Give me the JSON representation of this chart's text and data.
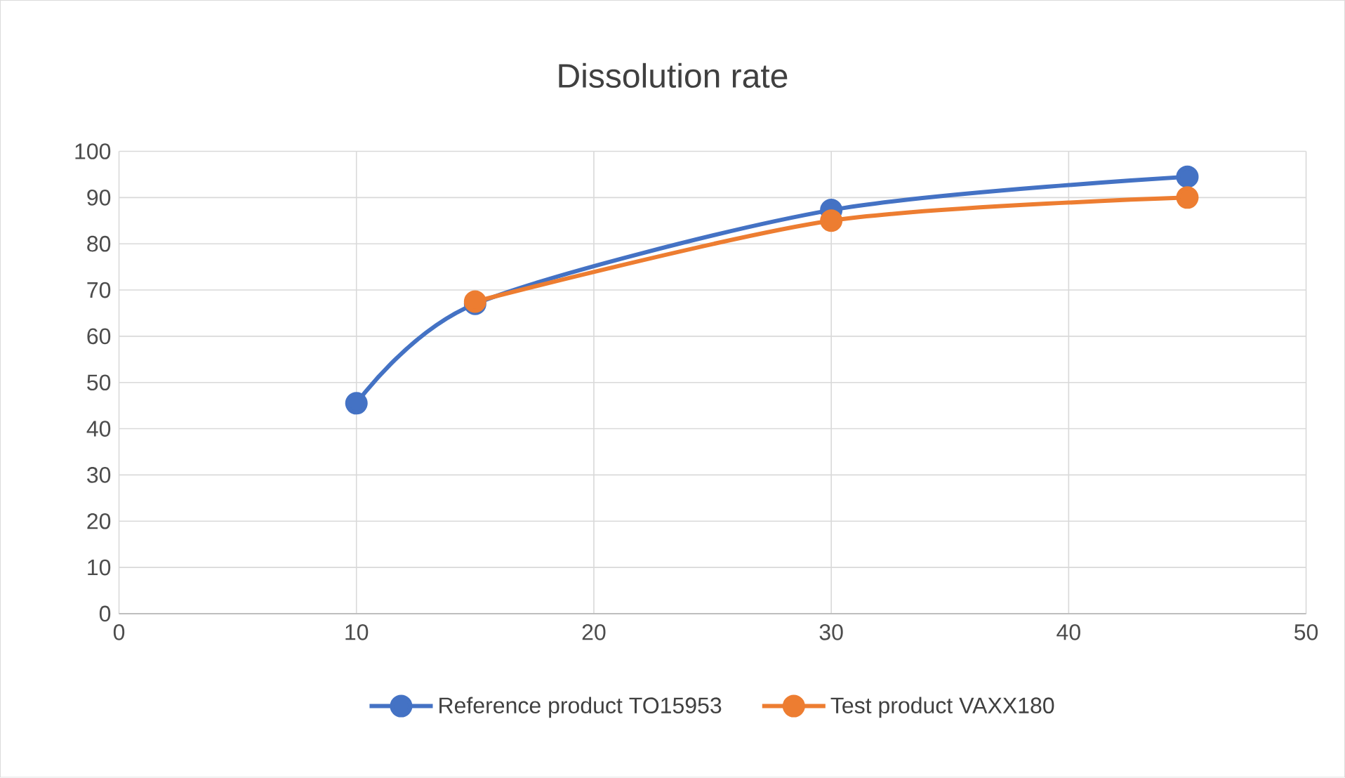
{
  "chart_data": {
    "type": "line",
    "title": "Dissolution rate",
    "series": [
      {
        "name": "Reference product TO15953",
        "color": "#4472c4",
        "x": [
          10,
          15,
          30,
          45
        ],
        "values": [
          45.5,
          67,
          87.3,
          94.5
        ]
      },
      {
        "name": "Test product VAXX180",
        "color": "#ed7d31",
        "x": [
          15,
          30,
          45
        ],
        "values": [
          67.5,
          85,
          90
        ]
      }
    ],
    "xlim": [
      0,
      50
    ],
    "xticks": [
      0,
      10,
      20,
      30,
      40,
      50
    ],
    "ylim": [
      0,
      100
    ],
    "yticks": [
      0,
      10,
      20,
      30,
      40,
      50,
      60,
      70,
      80,
      90,
      100
    ],
    "grid": true,
    "legend": "bottom",
    "marker": "circle",
    "line_style": "solid"
  }
}
